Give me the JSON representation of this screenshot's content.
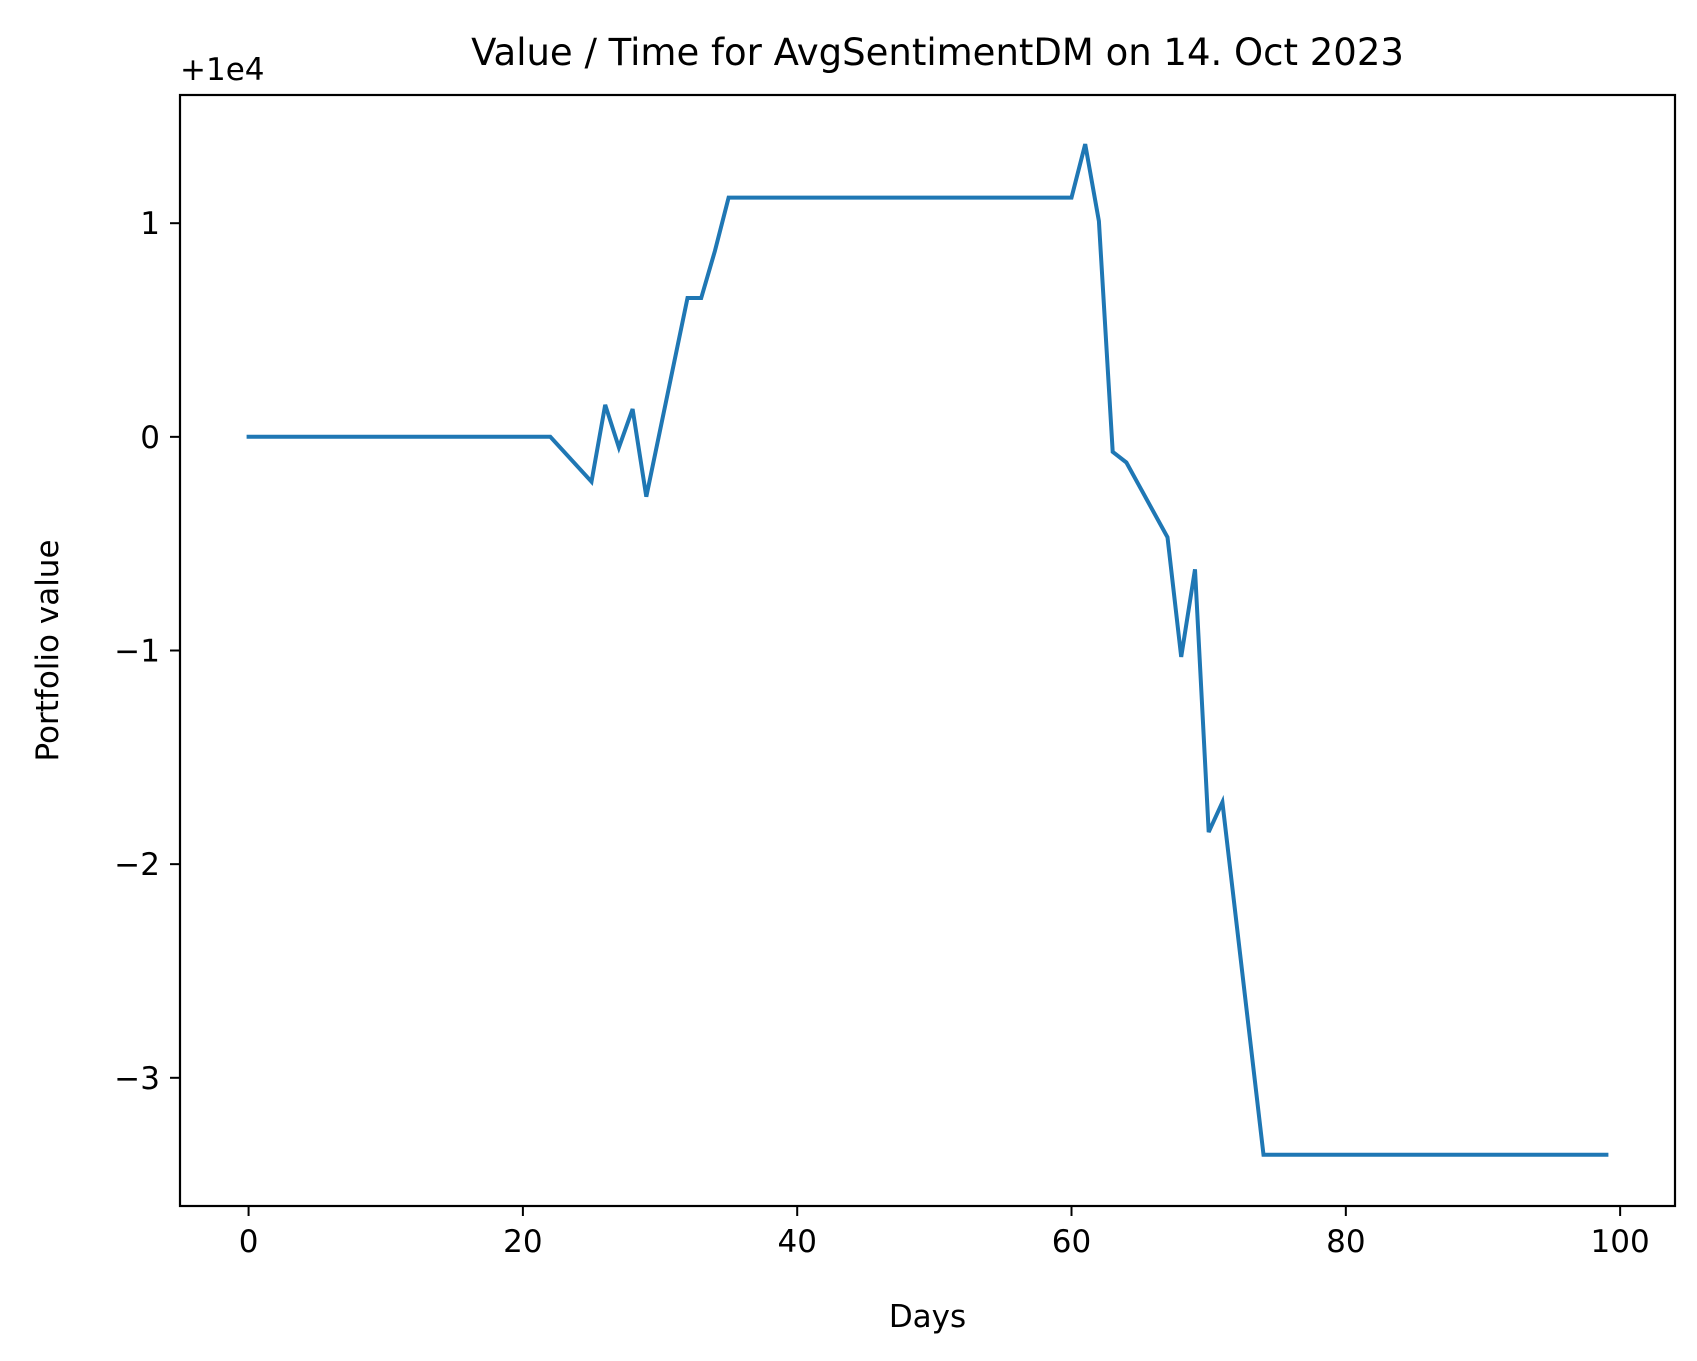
{
  "chart_data": {
    "type": "line",
    "title": "Value / Time for AvgSentimentDM on 14. Oct 2023",
    "xlabel": "Days",
    "ylabel": "Portfolio value",
    "offset_label": "+1e4",
    "xlim": [
      -5,
      104
    ],
    "ylim": [
      -3.6,
      1.6
    ],
    "xticks": [
      0,
      20,
      40,
      60,
      80,
      100
    ],
    "xtick_labels": [
      "0",
      "20",
      "40",
      "60",
      "80",
      "100"
    ],
    "yticks": [
      1,
      0,
      -1,
      -2,
      -3
    ],
    "ytick_labels": [
      "1",
      "0",
      "−1",
      "−2",
      "−3"
    ],
    "grid": false,
    "line_color": "#1f77b4",
    "series": [
      {
        "x": [
          0,
          22,
          25,
          26,
          27,
          28,
          29,
          32,
          33,
          34,
          35,
          60,
          61,
          62,
          63,
          64,
          67,
          68,
          69,
          70,
          71,
          74,
          99
        ],
        "y": [
          0,
          0,
          -0.21,
          0.15,
          -0.05,
          0.13,
          -0.28,
          0.65,
          0.65,
          0.87,
          1.12,
          1.12,
          1.37,
          1.01,
          -0.07,
          -0.12,
          -0.47,
          -1.03,
          -0.62,
          -1.85,
          -1.71,
          -3.36,
          -3.36
        ]
      }
    ]
  }
}
